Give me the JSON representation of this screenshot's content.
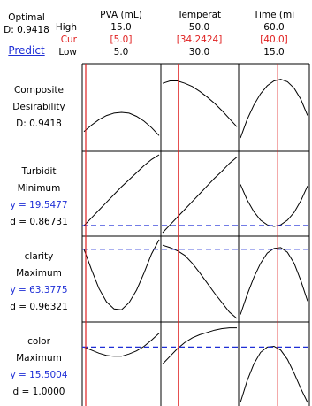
{
  "header": {
    "optimal_label": "Optimal",
    "d_label": "D: 0.9418",
    "predict_label": "Predict",
    "row_labels": [
      "High",
      "Cur",
      "Low"
    ]
  },
  "factors": [
    {
      "name": "PVA (mL)",
      "high": "15.0",
      "cur": "[5.0]",
      "low": "5.0"
    },
    {
      "name": "Temperat",
      "high": "50.0",
      "cur": "[34.2424]",
      "low": "30.0"
    },
    {
      "name": "Time (mi",
      "high": "60.0",
      "cur": "[40.0]",
      "low": "15.0"
    }
  ],
  "responses": [
    {
      "name": "Composite",
      "goal": "Desirability",
      "y": "",
      "d": "D: 0.9418"
    },
    {
      "name": "Turbidit",
      "goal": "Minimum",
      "y": "y = 19.5477",
      "d": "d = 0.86731"
    },
    {
      "name": "clarity",
      "goal": "Maximum",
      "y": "y = 63.3775",
      "d": "d = 0.96321"
    },
    {
      "name": "color",
      "goal": "Maximum",
      "y": "y = 15.5004",
      "d": "d = 1.0000"
    }
  ],
  "colors": {
    "current_line": "#e02020",
    "optimum_line": "#1f2fd6",
    "curve": "#000000",
    "frame": "#000000"
  },
  "chart_data": {
    "type": "line",
    "title": "Optimal",
    "factors": [
      {
        "name": "PVA (mL)",
        "low": 5.0,
        "high": 15.0,
        "current": 5.0
      },
      {
        "name": "Temperat",
        "low": 30.0,
        "high": 50.0,
        "current": 34.2424
      },
      {
        "name": "Time (mi",
        "low": 15.0,
        "high": 60.0,
        "current": 40.0
      }
    ],
    "rows": [
      {
        "response": "Composite Desirability",
        "optimum": null,
        "curves": [
          {
            "t": [
              0,
              0.1,
              0.2,
              0.3,
              0.4,
              0.5,
              0.6,
              0.7,
              0.8,
              0.9,
              1.0
            ],
            "v": [
              0.2,
              0.28,
              0.35,
              0.4,
              0.43,
              0.44,
              0.43,
              0.39,
              0.33,
              0.25,
              0.15
            ]
          },
          {
            "t": [
              0,
              0.1,
              0.2,
              0.3,
              0.4,
              0.5,
              0.6,
              0.7,
              0.8,
              0.9,
              1.0
            ],
            "v": [
              0.8,
              0.83,
              0.83,
              0.8,
              0.76,
              0.7,
              0.63,
              0.55,
              0.46,
              0.36,
              0.26
            ]
          },
          {
            "t": [
              0,
              0.1,
              0.2,
              0.3,
              0.4,
              0.5,
              0.6,
              0.7,
              0.8,
              0.9,
              1.0
            ],
            "v": [
              0.12,
              0.35,
              0.53,
              0.67,
              0.77,
              0.83,
              0.85,
              0.82,
              0.74,
              0.6,
              0.4
            ]
          }
        ]
      },
      {
        "response": "Turbidit",
        "optimum": 0.09,
        "curves": [
          {
            "t": [
              0,
              0.1,
              0.2,
              0.3,
              0.4,
              0.5,
              0.6,
              0.7,
              0.8,
              0.9,
              1.0
            ],
            "v": [
              0.09,
              0.19,
              0.29,
              0.39,
              0.49,
              0.59,
              0.68,
              0.77,
              0.86,
              0.94,
              1.0
            ]
          },
          {
            "t": [
              0,
              0.1,
              0.2,
              0.3,
              0.4,
              0.5,
              0.6,
              0.7,
              0.8,
              0.9,
              1.0
            ],
            "v": [
              0.0,
              0.1,
              0.2,
              0.3,
              0.4,
              0.5,
              0.6,
              0.7,
              0.79,
              0.89,
              0.97
            ]
          },
          {
            "t": [
              0,
              0.1,
              0.2,
              0.3,
              0.4,
              0.5,
              0.6,
              0.7,
              0.8,
              0.9,
              1.0
            ],
            "v": [
              0.62,
              0.42,
              0.27,
              0.16,
              0.1,
              0.08,
              0.1,
              0.16,
              0.26,
              0.41,
              0.6
            ]
          }
        ]
      },
      {
        "response": "clarity",
        "optimum": 0.88,
        "curves": [
          {
            "t": [
              0,
              0.1,
              0.2,
              0.3,
              0.4,
              0.5,
              0.6,
              0.7,
              0.8,
              0.9,
              1.0
            ],
            "v": [
              0.88,
              0.62,
              0.38,
              0.21,
              0.12,
              0.11,
              0.2,
              0.36,
              0.58,
              0.82,
              1.0
            ]
          },
          {
            "t": [
              0,
              0.1,
              0.2,
              0.3,
              0.4,
              0.5,
              0.6,
              0.7,
              0.8,
              0.9,
              1.0
            ],
            "v": [
              0.93,
              0.9,
              0.86,
              0.8,
              0.7,
              0.58,
              0.45,
              0.32,
              0.2,
              0.08,
              0.0
            ]
          },
          {
            "t": [
              0,
              0.1,
              0.2,
              0.3,
              0.4,
              0.5,
              0.6,
              0.7,
              0.8,
              0.9,
              1.0
            ],
            "v": [
              0.05,
              0.3,
              0.52,
              0.7,
              0.83,
              0.89,
              0.9,
              0.84,
              0.7,
              0.48,
              0.22
            ]
          }
        ]
      },
      {
        "response": "color",
        "optimum": 0.72,
        "curves": [
          {
            "t": [
              0,
              0.1,
              0.2,
              0.3,
              0.4,
              0.5,
              0.6,
              0.7,
              0.8,
              0.9,
              1.0
            ],
            "v": [
              0.72,
              0.68,
              0.64,
              0.61,
              0.6,
              0.6,
              0.63,
              0.67,
              0.73,
              0.81,
              0.9
            ]
          },
          {
            "t": [
              0,
              0.1,
              0.2,
              0.3,
              0.4,
              0.5,
              0.6,
              0.7,
              0.8,
              0.9,
              1.0
            ],
            "v": [
              0.5,
              0.6,
              0.7,
              0.78,
              0.84,
              0.88,
              0.91,
              0.94,
              0.96,
              0.97,
              0.97
            ]
          },
          {
            "t": [
              0,
              0.1,
              0.2,
              0.3,
              0.4,
              0.5,
              0.6,
              0.7,
              0.8,
              0.9,
              1.0
            ],
            "v": [
              0.0,
              0.28,
              0.5,
              0.65,
              0.72,
              0.73,
              0.68,
              0.56,
              0.38,
              0.18,
              0.0
            ]
          }
        ]
      }
    ]
  }
}
